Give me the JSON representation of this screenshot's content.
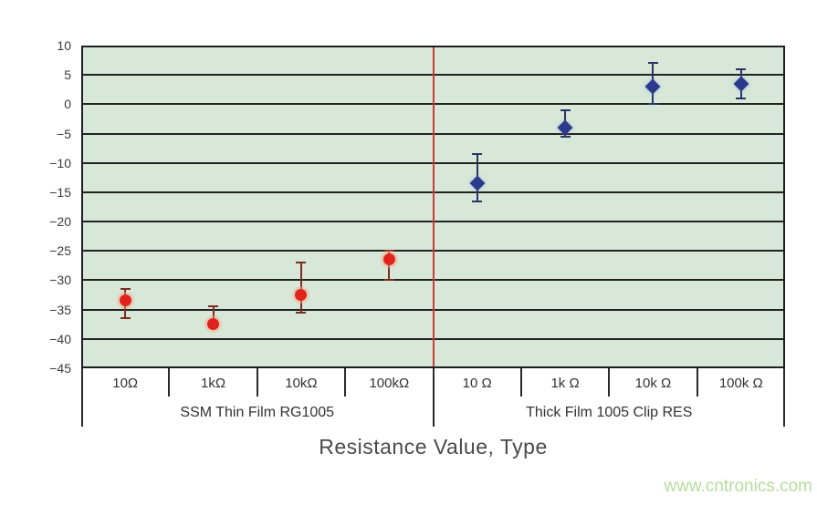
{
  "watermark": {
    "text": "www.cntronics.com",
    "color": "#b7dd9e"
  },
  "chart_data": {
    "type": "scatter",
    "title": "",
    "xlabel": "Resistance Value, Type",
    "ylabel": "",
    "ylim": [
      -45,
      10
    ],
    "ytick_step": 5,
    "grid": true,
    "legend_position": "none",
    "plot_bg_color": "#d7e8d8",
    "grid_color": "#222222",
    "group_separator_color": "#cc3b3b",
    "groups": [
      {
        "label": "SSM Thin Film RG1005",
        "marker": "circle",
        "marker_color": "#e0231b",
        "whisker_color": "#7b2d23",
        "points": [
          {
            "category": "10Ω",
            "value": -33.5,
            "whisker_high": -31.5,
            "whisker_low": -36.5
          },
          {
            "category": "1kΩ",
            "value": -37.5,
            "whisker_high": -34.5,
            "whisker_low": -38
          },
          {
            "category": "10kΩ",
            "value": -32.5,
            "whisker_high": -27,
            "whisker_low": -35.5
          },
          {
            "category": "100kΩ",
            "value": -26.5,
            "whisker_high": -25,
            "whisker_low": -30
          }
        ]
      },
      {
        "label": "Thick Film 1005 Clip RES",
        "marker": "diamond",
        "marker_color": "#2c3a8d",
        "whisker_color": "#2a3564",
        "points": [
          {
            "category": "10 Ω",
            "value": -13.5,
            "whisker_high": -8.5,
            "whisker_low": -16.5
          },
          {
            "category": "1k Ω",
            "value": -4,
            "whisker_high": -1,
            "whisker_low": -5.5
          },
          {
            "category": "10k Ω",
            "value": 3,
            "whisker_high": 7,
            "whisker_low": 0
          },
          {
            "category": "100k Ω",
            "value": 3.5,
            "whisker_high": 6,
            "whisker_low": 1
          }
        ]
      }
    ]
  }
}
